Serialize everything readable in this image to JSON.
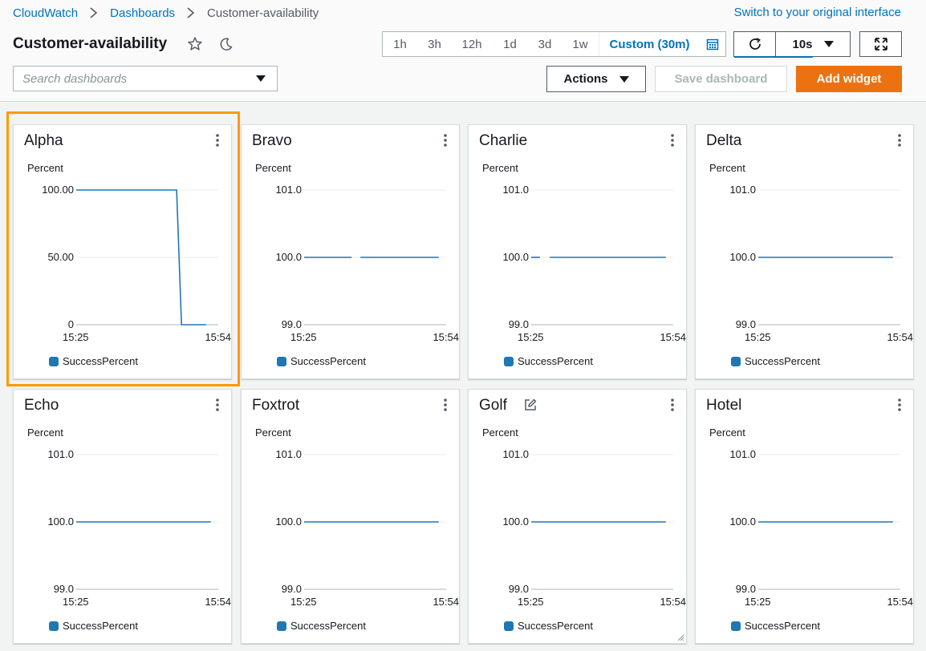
{
  "breadcrumb": {
    "root": "CloudWatch",
    "section": "Dashboards",
    "current": "Customer-availability"
  },
  "switch_link": "Switch to your original interface",
  "dashboard_title": "Customer-availability",
  "time_range": {
    "options": [
      "1h",
      "3h",
      "12h",
      "1d",
      "3d",
      "1w"
    ],
    "custom": "Custom (30m)"
  },
  "refresh": {
    "interval": "10s"
  },
  "search": {
    "placeholder": "Search dashboards",
    "value": ""
  },
  "toolbar": {
    "actions_label": "Actions",
    "save_label": "Save dashboard",
    "add_label": "Add widget"
  },
  "colors": {
    "accent": "#0073bb",
    "primary_button": "#ec7211",
    "highlight": "#ff9900",
    "series": "#1f77b4"
  },
  "widgets": [
    {
      "title": "Alpha",
      "unit": "Percent",
      "legend": "SuccessPercent",
      "selected": true
    },
    {
      "title": "Bravo",
      "unit": "Percent",
      "legend": "SuccessPercent"
    },
    {
      "title": "Charlie",
      "unit": "Percent",
      "legend": "SuccessPercent"
    },
    {
      "title": "Delta",
      "unit": "Percent",
      "legend": "SuccessPercent"
    },
    {
      "title": "Echo",
      "unit": "Percent",
      "legend": "SuccessPercent"
    },
    {
      "title": "Foxtrot",
      "unit": "Percent",
      "legend": "SuccessPercent"
    },
    {
      "title": "Golf",
      "unit": "Percent",
      "legend": "SuccessPercent",
      "editable": true
    },
    {
      "title": "Hotel",
      "unit": "Percent",
      "legend": "SuccessPercent"
    }
  ],
  "chart_data": [
    {
      "type": "line",
      "title": "Alpha",
      "ylabel": "Percent",
      "y_ticks": [
        "100.00",
        "50.00",
        "0"
      ],
      "ylim": [
        0,
        100
      ],
      "x_ticks": [
        "15:25",
        "15:54"
      ],
      "xlim": [
        0,
        29
      ],
      "series": [
        {
          "name": "SuccessPercent",
          "segments": [
            [
              [
                0,
                100
              ],
              [
                20.5,
                100
              ],
              [
                21.5,
                0
              ],
              [
                26.5,
                0
              ]
            ]
          ]
        }
      ]
    },
    {
      "type": "line",
      "title": "Bravo",
      "ylabel": "Percent",
      "y_ticks": [
        "101.0",
        "100.0",
        "99.0"
      ],
      "ylim": [
        99,
        101
      ],
      "x_ticks": [
        "15:25",
        "15:54"
      ],
      "xlim": [
        0,
        29
      ],
      "series": [
        {
          "name": "SuccessPercent",
          "segments": [
            [
              [
                0,
                100
              ],
              [
                9.7,
                100
              ]
            ],
            [
              [
                11.5,
                100
              ],
              [
                27.5,
                100
              ]
            ]
          ]
        }
      ]
    },
    {
      "type": "line",
      "title": "Charlie",
      "ylabel": "Percent",
      "y_ticks": [
        "101.0",
        "100.0",
        "99.0"
      ],
      "ylim": [
        99,
        101
      ],
      "x_ticks": [
        "15:25",
        "15:54"
      ],
      "xlim": [
        0,
        29
      ],
      "series": [
        {
          "name": "SuccessPercent",
          "segments": [
            [
              [
                0,
                100
              ],
              [
                1.8,
                100
              ]
            ],
            [
              [
                3.8,
                100
              ],
              [
                27.5,
                100
              ]
            ]
          ]
        }
      ]
    },
    {
      "type": "line",
      "title": "Delta",
      "ylabel": "Percent",
      "y_ticks": [
        "101.0",
        "100.0",
        "99.0"
      ],
      "ylim": [
        99,
        101
      ],
      "x_ticks": [
        "15:25",
        "15:54"
      ],
      "xlim": [
        0,
        29
      ],
      "series": [
        {
          "name": "SuccessPercent",
          "segments": [
            [
              [
                0,
                100
              ],
              [
                27.5,
                100
              ]
            ]
          ]
        }
      ]
    },
    {
      "type": "line",
      "title": "Echo",
      "ylabel": "Percent",
      "y_ticks": [
        "101.0",
        "100.0",
        "99.0"
      ],
      "ylim": [
        99,
        101
      ],
      "x_ticks": [
        "15:25",
        "15:54"
      ],
      "xlim": [
        0,
        29
      ],
      "series": [
        {
          "name": "SuccessPercent",
          "segments": [
            [
              [
                0,
                100
              ],
              [
                27.5,
                100
              ]
            ]
          ]
        }
      ]
    },
    {
      "type": "line",
      "title": "Foxtrot",
      "ylabel": "Percent",
      "y_ticks": [
        "101.0",
        "100.0",
        "99.0"
      ],
      "ylim": [
        99,
        101
      ],
      "x_ticks": [
        "15:25",
        "15:54"
      ],
      "xlim": [
        0,
        29
      ],
      "series": [
        {
          "name": "SuccessPercent",
          "segments": [
            [
              [
                0,
                100
              ],
              [
                27.5,
                100
              ]
            ]
          ]
        }
      ]
    },
    {
      "type": "line",
      "title": "Golf",
      "ylabel": "Percent",
      "y_ticks": [
        "101.0",
        "100.0",
        "99.0"
      ],
      "ylim": [
        99,
        101
      ],
      "x_ticks": [
        "15:25",
        "15:54"
      ],
      "xlim": [
        0,
        29
      ],
      "series": [
        {
          "name": "SuccessPercent",
          "segments": [
            [
              [
                0,
                100
              ],
              [
                27.5,
                100
              ]
            ]
          ]
        }
      ]
    },
    {
      "type": "line",
      "title": "Hotel",
      "ylabel": "Percent",
      "y_ticks": [
        "101.0",
        "100.0",
        "99.0"
      ],
      "ylim": [
        99,
        101
      ],
      "x_ticks": [
        "15:25",
        "15:54"
      ],
      "xlim": [
        0,
        29
      ],
      "series": [
        {
          "name": "SuccessPercent",
          "segments": [
            [
              [
                0,
                100
              ],
              [
                27.5,
                100
              ]
            ]
          ]
        }
      ]
    }
  ]
}
